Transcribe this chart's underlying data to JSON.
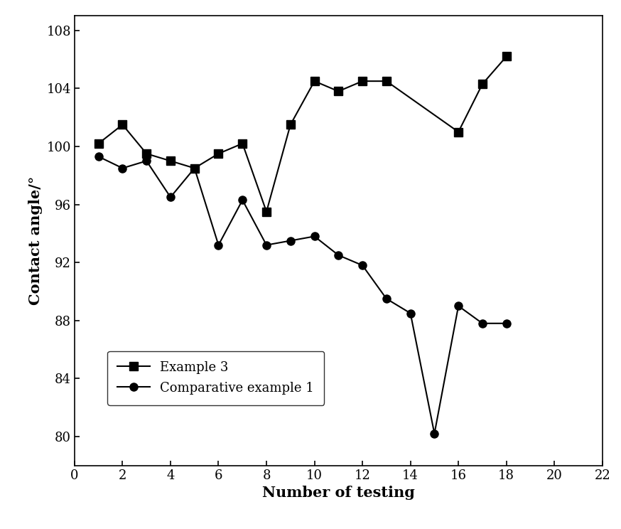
{
  "example3_x": [
    1,
    2,
    3,
    4,
    5,
    6,
    7,
    8,
    9,
    10,
    11,
    12,
    13,
    16,
    17,
    18
  ],
  "example3_y": [
    100.2,
    101.5,
    99.5,
    99.0,
    98.5,
    99.5,
    100.2,
    95.5,
    101.5,
    104.5,
    103.8,
    104.5,
    104.5,
    101.0,
    104.3,
    106.2
  ],
  "comp1_x": [
    1,
    2,
    3,
    4,
    5,
    6,
    7,
    8,
    9,
    10,
    11,
    12,
    13,
    14,
    15,
    16,
    17,
    18
  ],
  "comp1_y": [
    99.3,
    98.5,
    99.0,
    96.5,
    98.5,
    93.2,
    96.3,
    93.2,
    93.5,
    93.8,
    92.5,
    91.8,
    89.5,
    88.5,
    80.2,
    89.0,
    87.8,
    87.8
  ],
  "xlabel": "Number of testing",
  "ylabel": "Contact angle/°",
  "xlim": [
    0,
    22
  ],
  "ylim": [
    78,
    109
  ],
  "xticks": [
    0,
    2,
    4,
    6,
    8,
    10,
    12,
    14,
    16,
    18,
    20,
    22
  ],
  "yticks": [
    80,
    84,
    88,
    92,
    96,
    100,
    104,
    108
  ],
  "legend_example3": "Example 3",
  "legend_comp1": "Comparative example 1",
  "line_color": "#000000",
  "marker_square": "s",
  "marker_circle": "o",
  "marker_size": 8,
  "linewidth": 1.5,
  "background_color": "#ffffff",
  "label_fontsize": 15,
  "tick_fontsize": 13,
  "legend_fontsize": 13
}
